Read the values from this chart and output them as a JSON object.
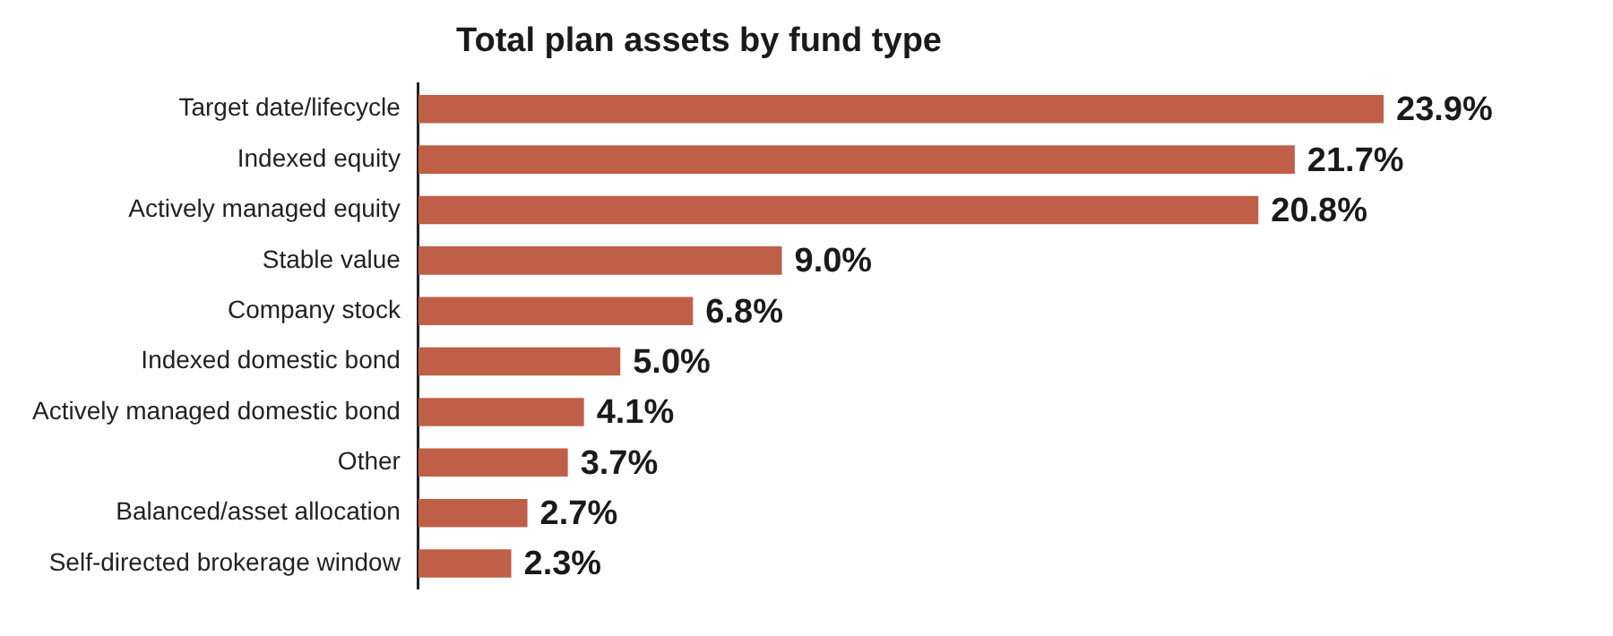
{
  "chart_data": {
    "type": "bar",
    "orientation": "horizontal",
    "title": "Total plan assets by fund type",
    "categories": [
      "Target date/lifecycle",
      "Indexed equity",
      "Actively managed equity",
      "Stable value",
      "Company stock",
      "Indexed domestic bond",
      "Actively managed domestic bond",
      "Other",
      "Balanced/asset allocation",
      "Self-directed brokerage window"
    ],
    "values": [
      23.9,
      21.7,
      20.8,
      9.0,
      6.8,
      5.0,
      4.1,
      3.7,
      2.7,
      2.3
    ],
    "value_labels": [
      "23.9%",
      "21.7%",
      "20.8%",
      "9.0%",
      "6.8%",
      "5.0%",
      "4.1%",
      "3.7%",
      "2.7%",
      "2.3%"
    ],
    "color": "#bf5f48",
    "grid": false,
    "legend": false
  }
}
